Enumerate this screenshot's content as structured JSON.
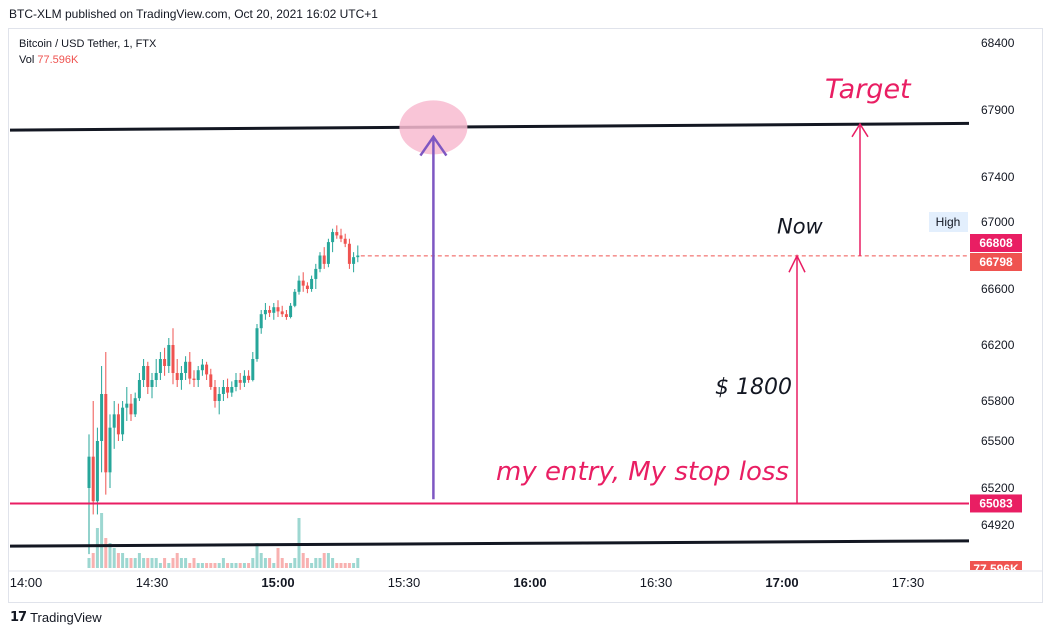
{
  "header": {
    "published": "BTC-XLM published on TradingView.com, Oct 20, 2021 16:02 UTC+1"
  },
  "legend": {
    "symbol": "Bitcoin / USD Tether, 1, FTX",
    "vol_label": "Vol",
    "vol_value": "77.596K"
  },
  "footer": {
    "brand": "TradingView"
  },
  "colors": {
    "up": "#26a69a",
    "down": "#ef5350",
    "annotation": "#e91e63",
    "arrow_purple": "#7e57c2",
    "line_black": "#131722",
    "circle": "#f8bbd0"
  },
  "chart_data": {
    "type": "candlestick",
    "interval": "1",
    "x_ticks": [
      "14:00",
      "14:30",
      "15:00",
      "15:30",
      "16:00",
      "16:30",
      "17:00",
      "17:30"
    ],
    "x_ticks_bold": [
      "15:00",
      "16:00",
      "17:00"
    ],
    "y_ticks": [
      68400,
      67900,
      67400,
      67000,
      66600,
      66200,
      65800,
      65500,
      65200,
      64920
    ],
    "price_tags": [
      {
        "label": "66808",
        "value": 66808,
        "color": "#e91e63"
      },
      {
        "label": "66798",
        "value": 66798,
        "color": "#ef5350"
      },
      {
        "label": "65083",
        "value": 65083,
        "color": "#e91e63"
      }
    ],
    "high_tag": "High",
    "volume_tag": "77.596K",
    "horizontal_lines": [
      {
        "name": "target",
        "start_value": 67750,
        "end_value": 67800
      },
      {
        "name": "stop-loss",
        "value": 65083
      },
      {
        "name": "support",
        "start_value": 64760,
        "end_value": 64800
      }
    ],
    "annotations": {
      "target": "Target",
      "now": "Now",
      "distance": "$ 1800",
      "entry": "my entry, My stop loss"
    },
    "candles": [
      {
        "time": "14:15",
        "o": 65200,
        "h": 65550,
        "l": 64700,
        "c": 65400
      },
      {
        "time": "14:16",
        "o": 65400,
        "h": 65800,
        "l": 65000,
        "c": 65100
      },
      {
        "time": "14:17",
        "o": 65100,
        "h": 65600,
        "l": 65000,
        "c": 65500
      },
      {
        "time": "14:18",
        "o": 65500,
        "h": 66050,
        "l": 65300,
        "c": 65850
      },
      {
        "time": "14:19",
        "o": 65850,
        "h": 66150,
        "l": 65150,
        "c": 65300
      },
      {
        "time": "14:20",
        "o": 65300,
        "h": 65700,
        "l": 65200,
        "c": 65600
      },
      {
        "time": "14:21",
        "o": 65600,
        "h": 65800,
        "l": 65450,
        "c": 65700
      },
      {
        "time": "14:22",
        "o": 65700,
        "h": 65780,
        "l": 65500,
        "c": 65550
      },
      {
        "time": "14:23",
        "o": 65550,
        "h": 65800,
        "l": 65500,
        "c": 65750
      },
      {
        "time": "14:24",
        "o": 65750,
        "h": 65900,
        "l": 65650,
        "c": 65780
      },
      {
        "time": "14:25",
        "o": 65780,
        "h": 65850,
        "l": 65650,
        "c": 65700
      },
      {
        "time": "14:26",
        "o": 65700,
        "h": 65860,
        "l": 65680,
        "c": 65820
      },
      {
        "time": "14:27",
        "o": 65820,
        "h": 66000,
        "l": 65800,
        "c": 65950
      },
      {
        "time": "14:28",
        "o": 65950,
        "h": 66100,
        "l": 65900,
        "c": 66050
      },
      {
        "time": "14:29",
        "o": 66050,
        "h": 66080,
        "l": 65850,
        "c": 65900
      },
      {
        "time": "14:30",
        "o": 65900,
        "h": 66000,
        "l": 65820,
        "c": 65950
      },
      {
        "time": "14:31",
        "o": 65950,
        "h": 66100,
        "l": 65900,
        "c": 66000
      },
      {
        "time": "14:32",
        "o": 66000,
        "h": 66150,
        "l": 65950,
        "c": 66100
      },
      {
        "time": "14:33",
        "o": 66100,
        "h": 66180,
        "l": 65980,
        "c": 66050
      },
      {
        "time": "14:34",
        "o": 66050,
        "h": 66250,
        "l": 66000,
        "c": 66200
      },
      {
        "time": "14:35",
        "o": 66200,
        "h": 66320,
        "l": 65920,
        "c": 66000
      },
      {
        "time": "14:36",
        "o": 66000,
        "h": 66100,
        "l": 65900,
        "c": 65950
      },
      {
        "time": "14:37",
        "o": 65950,
        "h": 66050,
        "l": 65880,
        "c": 66000
      },
      {
        "time": "14:38",
        "o": 66000,
        "h": 66120,
        "l": 65950,
        "c": 66080
      },
      {
        "time": "14:39",
        "o": 66080,
        "h": 66150,
        "l": 65920,
        "c": 65960
      },
      {
        "time": "14:40",
        "o": 65960,
        "h": 66020,
        "l": 65900,
        "c": 65950
      },
      {
        "time": "14:41",
        "o": 65950,
        "h": 66050,
        "l": 65900,
        "c": 66020
      },
      {
        "time": "14:42",
        "o": 66020,
        "h": 66100,
        "l": 65980,
        "c": 66060
      },
      {
        "time": "14:43",
        "o": 66060,
        "h": 66080,
        "l": 65950,
        "c": 65990
      },
      {
        "time": "14:44",
        "o": 65990,
        "h": 66030,
        "l": 65880,
        "c": 65900
      },
      {
        "time": "14:45",
        "o": 65900,
        "h": 65950,
        "l": 65750,
        "c": 65800
      },
      {
        "time": "14:46",
        "o": 65800,
        "h": 65900,
        "l": 65700,
        "c": 65850
      },
      {
        "time": "14:47",
        "o": 65850,
        "h": 65950,
        "l": 65800,
        "c": 65900
      },
      {
        "time": "14:48",
        "o": 65900,
        "h": 65960,
        "l": 65820,
        "c": 65860
      },
      {
        "time": "14:49",
        "o": 65860,
        "h": 65940,
        "l": 65830,
        "c": 65900
      },
      {
        "time": "14:50",
        "o": 65900,
        "h": 66000,
        "l": 65870,
        "c": 65950
      },
      {
        "time": "14:51",
        "o": 65950,
        "h": 66000,
        "l": 65880,
        "c": 65930
      },
      {
        "time": "14:52",
        "o": 65930,
        "h": 66020,
        "l": 65900,
        "c": 65980
      },
      {
        "time": "14:53",
        "o": 65980,
        "h": 66020,
        "l": 65930,
        "c": 65950
      },
      {
        "time": "14:54",
        "o": 65950,
        "h": 66150,
        "l": 65940,
        "c": 66100
      },
      {
        "time": "14:55",
        "o": 66100,
        "h": 66350,
        "l": 66080,
        "c": 66320
      },
      {
        "time": "14:56",
        "o": 66320,
        "h": 66450,
        "l": 66280,
        "c": 66420
      },
      {
        "time": "14:57",
        "o": 66420,
        "h": 66500,
        "l": 66380,
        "c": 66450
      },
      {
        "time": "14:58",
        "o": 66450,
        "h": 66480,
        "l": 66400,
        "c": 66430
      },
      {
        "time": "14:59",
        "o": 66430,
        "h": 66500,
        "l": 66380,
        "c": 66470
      },
      {
        "time": "15:00",
        "o": 66470,
        "h": 66520,
        "l": 66400,
        "c": 66440
      },
      {
        "time": "15:01",
        "o": 66440,
        "h": 66480,
        "l": 66400,
        "c": 66420
      },
      {
        "time": "15:02",
        "o": 66420,
        "h": 66450,
        "l": 66380,
        "c": 66400
      },
      {
        "time": "15:03",
        "o": 66400,
        "h": 66500,
        "l": 66390,
        "c": 66480
      },
      {
        "time": "15:04",
        "o": 66480,
        "h": 66600,
        "l": 66470,
        "c": 66580
      },
      {
        "time": "15:05",
        "o": 66580,
        "h": 66680,
        "l": 66560,
        "c": 66650
      },
      {
        "time": "15:06",
        "o": 66650,
        "h": 66700,
        "l": 66580,
        "c": 66620
      },
      {
        "time": "15:07",
        "o": 66620,
        "h": 66640,
        "l": 66570,
        "c": 66600
      },
      {
        "time": "15:08",
        "o": 66600,
        "h": 66680,
        "l": 66580,
        "c": 66660
      },
      {
        "time": "15:09",
        "o": 66660,
        "h": 66750,
        "l": 66600,
        "c": 66720
      },
      {
        "time": "15:10",
        "o": 66720,
        "h": 66820,
        "l": 66700,
        "c": 66800
      },
      {
        "time": "15:11",
        "o": 66800,
        "h": 66850,
        "l": 66720,
        "c": 66750
      },
      {
        "time": "15:12",
        "o": 66750,
        "h": 66900,
        "l": 66730,
        "c": 66880
      },
      {
        "time": "15:13",
        "o": 66880,
        "h": 66960,
        "l": 66820,
        "c": 66940
      },
      {
        "time": "15:14",
        "o": 66940,
        "h": 66980,
        "l": 66900,
        "c": 66920
      },
      {
        "time": "15:15",
        "o": 66920,
        "h": 66960,
        "l": 66880,
        "c": 66900
      },
      {
        "time": "15:16",
        "o": 66900,
        "h": 66930,
        "l": 66850,
        "c": 66870
      },
      {
        "time": "15:17",
        "o": 66870,
        "h": 66900,
        "l": 66720,
        "c": 66750
      },
      {
        "time": "15:18",
        "o": 66750,
        "h": 66820,
        "l": 66700,
        "c": 66790
      },
      {
        "time": "15:19",
        "o": 66790,
        "h": 66860,
        "l": 66760,
        "c": 66800
      }
    ],
    "volume": [
      2,
      3,
      8,
      11,
      6,
      5,
      4,
      3,
      3,
      2,
      2,
      2,
      3,
      2,
      2,
      2,
      2,
      1,
      2,
      1,
      2,
      3,
      2,
      2,
      1,
      2,
      1,
      1,
      1,
      1,
      1,
      1,
      2,
      1,
      1,
      1,
      1,
      1,
      1,
      2,
      5,
      3,
      2,
      2,
      1,
      4,
      2,
      1,
      1,
      2,
      10,
      3,
      2,
      1,
      2,
      2,
      3,
      3,
      2,
      1,
      1,
      1,
      1,
      1,
      2
    ],
    "volume_max": 12
  }
}
